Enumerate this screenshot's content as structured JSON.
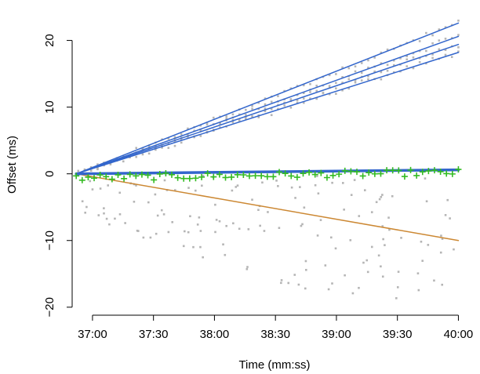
{
  "chart_data": {
    "type": "scatter",
    "title": "",
    "xlabel": "Time (mm:ss)",
    "ylabel": "Offset (ms)",
    "xlim": [
      2210,
      2406
    ],
    "ylim": [
      -21.2,
      24.3
    ],
    "xticks": [
      {
        "value": 2220,
        "label": "37:00"
      },
      {
        "value": 2250,
        "label": "37:30"
      },
      {
        "value": 2280,
        "label": "38:00"
      },
      {
        "value": 2310,
        "label": "38:30"
      },
      {
        "value": 2340,
        "label": "39:00"
      },
      {
        "value": 2370,
        "label": "39:30"
      },
      {
        "value": 2400,
        "label": "40:00"
      }
    ],
    "yticks": [
      -20,
      -10,
      0,
      10,
      20
    ],
    "yticklabels": [
      "−20",
      "−10",
      "0",
      "10",
      "20"
    ],
    "grid": false,
    "colors": {
      "gray_points": "#b5b5b5",
      "blue_lines": "#3366cc",
      "orange_line": "#cc8833",
      "green_points": "#33bb22",
      "axis": "#000000"
    },
    "series": [
      {
        "kind": "line",
        "color": "#3366cc",
        "width": 1.5,
        "x": [
          2212,
          2400
        ],
        "y": [
          0,
          22.6
        ]
      },
      {
        "kind": "line",
        "color": "#3366cc",
        "width": 1.5,
        "x": [
          2212,
          2400
        ],
        "y": [
          0,
          20.6
        ]
      },
      {
        "kind": "line",
        "color": "#3366cc",
        "width": 1.5,
        "x": [
          2212,
          2400
        ],
        "y": [
          0,
          19.4
        ]
      },
      {
        "kind": "line",
        "color": "#3366cc",
        "width": 1.5,
        "x": [
          2212,
          2400
        ],
        "y": [
          0,
          18.2
        ]
      },
      {
        "kind": "line",
        "color": "#cc8833",
        "width": 1.5,
        "x": [
          2212,
          2400
        ],
        "y": [
          0,
          -10.0
        ]
      },
      {
        "kind": "line",
        "color": "#3366cc",
        "width": 3.5,
        "x": [
          2212,
          2400
        ],
        "y": [
          0,
          0.6
        ]
      },
      {
        "kind": "gray_band",
        "color": "#b5b5b5",
        "count": 60,
        "x_start": 2213,
        "x_end": 2400,
        "y_start": 0,
        "y_ends": [
          22.6,
          20.6,
          19.4,
          18.2
        ],
        "spread": 0.45
      },
      {
        "kind": "gray_scatter",
        "color": "#b5b5b5",
        "count": 150,
        "x_start": 2214,
        "x_end": 2399,
        "slope": -0.053,
        "y_min": -19,
        "y_max": 0
      },
      {
        "kind": "green_plus",
        "color": "#33bb22",
        "count": 65,
        "x_start": 2212,
        "x_end": 2400,
        "y_start": -0.6,
        "y_end": 0.2,
        "spread": 0.5
      }
    ]
  }
}
